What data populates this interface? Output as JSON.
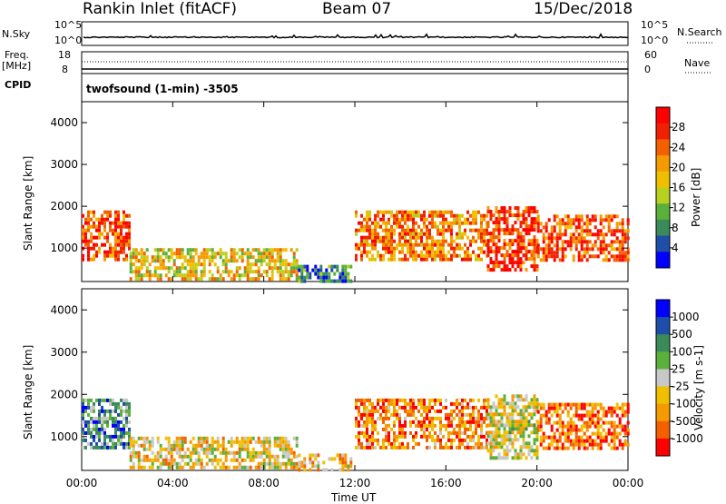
{
  "header": {
    "station": "Rankin Inlet (fitACF)",
    "beam": "Beam 07",
    "date": "15/Dec/2018"
  },
  "top_panel": {
    "left_label": "N.Sky",
    "right_label": "N.Search",
    "left_ticks": [
      "10^5",
      "10^0"
    ],
    "right_ticks": [
      "10^5",
      "10^0"
    ]
  },
  "freq_panel": {
    "left_label_1": "Freq.",
    "left_label_2": "[MHz]",
    "left_ticks": [
      "18",
      "8"
    ],
    "right_ticks": [
      "60",
      "0"
    ],
    "right_label": "Nave"
  },
  "cpid": {
    "label": "CPID",
    "value": "twofsound (1-min) -3505"
  },
  "colors": {
    "power": [
      "#0000ff",
      "#1e4ea8",
      "#3a8a5a",
      "#5ab03a",
      "#b8d020",
      "#f0c000",
      "#f59a00",
      "#f46000",
      "#f02000",
      "#ff0000"
    ],
    "velocity": [
      "#ff0000",
      "#f46000",
      "#f59a00",
      "#f0c000",
      "#c8c8c8",
      "#5ab03a",
      "#3a8a5a",
      "#1e4ea8",
      "#0000ff"
    ]
  },
  "chart_data": [
    {
      "type": "heatmap",
      "panel": "power",
      "ylabel": "Slant Range [km]",
      "xlabel": "",
      "ylim": [
        200,
        4500
      ],
      "x_ticks": [
        "00:00",
        "04:00",
        "08:00",
        "12:00",
        "16:00",
        "20:00",
        "00:00"
      ],
      "y_ticks": [
        1000,
        2000,
        3000,
        4000
      ],
      "colorbar_label": "Power [dB]",
      "colorbar_ticks": [
        28,
        24,
        20,
        16,
        12,
        8,
        4
      ],
      "regions": [
        {
          "t0": 0.0,
          "t1": 2.1,
          "r0": 700,
          "r1": 1900,
          "v": 0.8
        },
        {
          "t0": 2.1,
          "t1": 9.5,
          "r0": 300,
          "r1": 1000,
          "v": 0.55
        },
        {
          "t0": 9.5,
          "t1": 11.8,
          "r0": 200,
          "r1": 600,
          "v": 0.25
        },
        {
          "t0": 12.0,
          "t1": 17.8,
          "r0": 700,
          "r1": 1900,
          "v": 0.7
        },
        {
          "t0": 17.8,
          "t1": 20.0,
          "r0": 500,
          "r1": 2000,
          "v": 0.85
        },
        {
          "t0": 20.0,
          "t1": 24.0,
          "r0": 700,
          "r1": 1800,
          "v": 0.8
        }
      ]
    },
    {
      "type": "heatmap",
      "panel": "velocity",
      "ylabel": "Slant Range [km]",
      "xlabel": "Time UT",
      "ylim": [
        200,
        4500
      ],
      "x_ticks": [
        "00:00",
        "04:00",
        "08:00",
        "12:00",
        "16:00",
        "20:00",
        "00:00"
      ],
      "y_ticks": [
        1000,
        2000,
        3000,
        4000
      ],
      "colorbar_label": "Velocity [m s-1]",
      "colorbar_ticks": [
        "1000",
        "500",
        "100",
        "25",
        "-25",
        "-100",
        "-500",
        "-1000"
      ],
      "regions": [
        {
          "t0": 0.0,
          "t1": 2.1,
          "r0": 700,
          "r1": 1900,
          "v": 0.7
        },
        {
          "t0": 2.1,
          "t1": 9.5,
          "r0": 300,
          "r1": 1000,
          "v": 0.4
        },
        {
          "t0": 9.5,
          "t1": 11.8,
          "r0": 200,
          "r1": 600,
          "v": 0.35
        },
        {
          "t0": 12.0,
          "t1": 17.8,
          "r0": 700,
          "r1": 1900,
          "v": 0.25
        },
        {
          "t0": 17.8,
          "t1": 20.0,
          "r0": 500,
          "r1": 2000,
          "v": 0.45
        },
        {
          "t0": 20.0,
          "t1": 24.0,
          "r0": 700,
          "r1": 1800,
          "v": 0.2
        }
      ]
    }
  ]
}
